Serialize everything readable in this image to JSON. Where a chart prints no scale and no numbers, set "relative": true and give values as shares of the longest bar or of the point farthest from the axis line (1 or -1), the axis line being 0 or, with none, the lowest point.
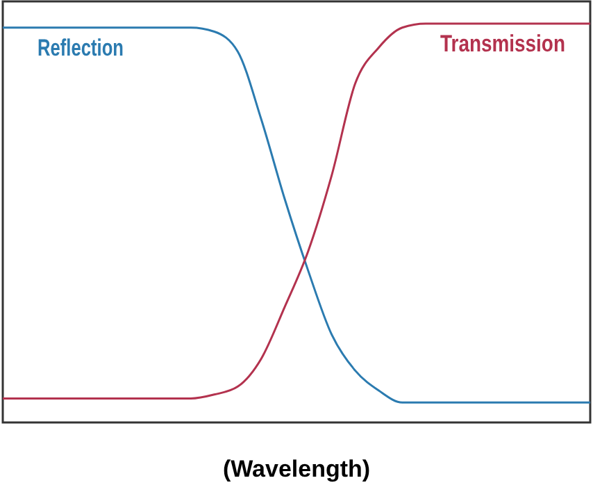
{
  "chart_data": {
    "type": "line",
    "relative": true,
    "xlabel": "(Wavelength)",
    "categories": [
      null,
      null,
      null,
      null,
      null,
      null,
      null,
      null,
      null,
      null,
      null,
      null,
      null,
      null,
      null,
      null,
      null,
      null,
      null,
      null,
      null,
      null,
      null,
      null,
      null,
      null
    ],
    "series": [
      {
        "name": "Reflection",
        "color": "#2b7bb0",
        "values": [
          0.99,
          0.99,
          0.99,
          0.99,
          0.99,
          0.99,
          0.99,
          0.99,
          0.99,
          0.98,
          0.93,
          0.76,
          0.56,
          0.38,
          0.22,
          0.13,
          0.08,
          0.05,
          0.05,
          0.05,
          0.05,
          0.05,
          0.05,
          0.05,
          0.05,
          0.05
        ]
      },
      {
        "name": "Transmission",
        "color": "#b3324e",
        "values": [
          0.06,
          0.06,
          0.06,
          0.06,
          0.06,
          0.06,
          0.06,
          0.06,
          0.06,
          0.07,
          0.09,
          0.16,
          0.29,
          0.43,
          0.62,
          0.85,
          0.94,
          0.99,
          1,
          1,
          1,
          1,
          1,
          1,
          1,
          1
        ]
      }
    ]
  }
}
